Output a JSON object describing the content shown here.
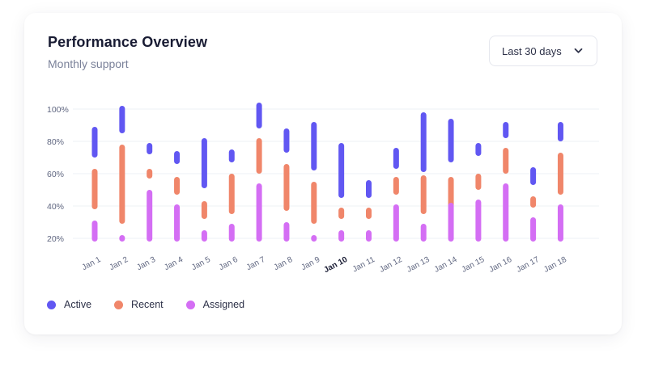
{
  "header": {
    "title": "Performance Overview",
    "subtitle": "Monthly support"
  },
  "range_select": {
    "label": "Last 30 days",
    "icon": "chevron-down-icon"
  },
  "colors": {
    "active": "#6157f2",
    "recent": "#f0866a",
    "assigned": "#d46ef4",
    "grid": "#eef0f4",
    "tick": "#5f6680",
    "tick_highlight": "#181b33"
  },
  "chart_data": {
    "type": "range-bar",
    "categories": [
      "Jan 1",
      "Jan 2",
      "Jan 3",
      "Jan 4",
      "Jan 5",
      "Jan 6",
      "Jan 7",
      "Jan 8",
      "Jan 9",
      "Jan 10",
      "Jan 11",
      "Jan 12",
      "Jan 13",
      "Jan 14",
      "Jan 15",
      "Jan 16",
      "Jan 17",
      "Jan 18"
    ],
    "highlighted_category": "Jan 10",
    "y_ticks": [
      "100%",
      "80%",
      "60%",
      "40%",
      "20%"
    ],
    "y_tick_values": [
      100,
      80,
      60,
      40,
      20
    ],
    "ylim": [
      20,
      100
    ],
    "grid": true,
    "legend_position": "bottom-left",
    "series": [
      {
        "name": "Active",
        "ranges": [
          [
            70,
            89
          ],
          [
            85,
            102
          ],
          [
            72,
            79
          ],
          [
            66,
            74
          ],
          [
            51,
            82
          ],
          [
            67,
            75
          ],
          [
            88,
            104
          ],
          [
            73,
            88
          ],
          [
            62,
            92
          ],
          [
            45,
            79
          ],
          [
            45,
            56
          ],
          [
            63,
            76
          ],
          [
            61,
            98
          ],
          [
            67,
            94
          ],
          [
            71,
            79
          ],
          [
            82,
            92
          ],
          [
            53,
            64
          ],
          [
            80,
            92
          ]
        ]
      },
      {
        "name": "Recent",
        "ranges": [
          [
            38,
            63
          ],
          [
            29,
            78
          ],
          [
            57,
            63
          ],
          [
            47,
            58
          ],
          [
            32,
            43
          ],
          [
            35,
            60
          ],
          [
            60,
            82
          ],
          [
            37,
            66
          ],
          [
            29,
            55
          ],
          [
            32,
            39
          ],
          [
            32,
            39
          ],
          [
            47,
            58
          ],
          [
            35,
            59
          ],
          [
            39,
            58
          ],
          [
            50,
            60
          ],
          [
            60,
            76
          ],
          [
            39,
            46
          ],
          [
            47,
            73
          ]
        ]
      },
      {
        "name": "Assigned",
        "ranges": [
          [
            18,
            31
          ],
          [
            18,
            22
          ],
          [
            18,
            50
          ],
          [
            18,
            41
          ],
          [
            18,
            25
          ],
          [
            18,
            29
          ],
          [
            18,
            54
          ],
          [
            18,
            30
          ],
          [
            18,
            22
          ],
          [
            18,
            25
          ],
          [
            18,
            25
          ],
          [
            18,
            41
          ],
          [
            18,
            29
          ],
          [
            18,
            42
          ],
          [
            18,
            44
          ],
          [
            18,
            54
          ],
          [
            18,
            33
          ],
          [
            18,
            41
          ]
        ]
      }
    ]
  },
  "legend": [
    {
      "label": "Active",
      "color_key": "active"
    },
    {
      "label": "Recent",
      "color_key": "recent"
    },
    {
      "label": "Assigned",
      "color_key": "assigned"
    }
  ]
}
